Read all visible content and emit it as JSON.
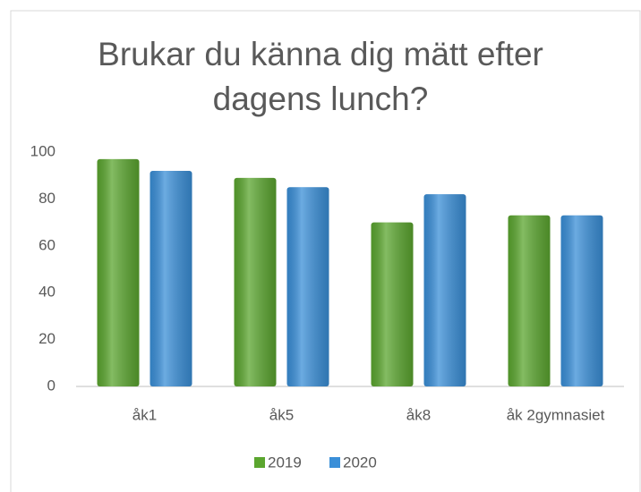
{
  "chart_data": {
    "type": "bar",
    "title": "Brukar du känna dig mätt efter dagens lunch?",
    "categories": [
      "åk1",
      "åk5",
      "åk8",
      "åk 2gymnasiet"
    ],
    "series": [
      {
        "name": "2019",
        "color": "#5ba62f",
        "values": [
          97,
          89,
          70,
          73
        ]
      },
      {
        "name": "2020",
        "color": "#3a8fd8",
        "values": [
          92,
          85,
          82,
          73
        ]
      }
    ],
    "ylim": [
      0,
      100
    ],
    "yticks": [
      0,
      20,
      40,
      60,
      80,
      100
    ],
    "grid": false,
    "legend": "bottom"
  }
}
